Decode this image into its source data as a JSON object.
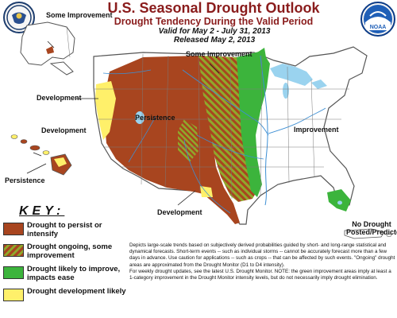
{
  "header": {
    "title": "U.S. Seasonal Drought Outlook",
    "subtitle": "Drought Tendency During the Valid Period",
    "valid": "Valid for May 2 - July 31, 2013",
    "released": "Released May 2, 2013"
  },
  "logos": {
    "left": {
      "name": "Department of Commerce seal"
    },
    "right": {
      "name": "NOAA logo",
      "text": "NOAA"
    }
  },
  "map": {
    "labels": {
      "some_improvement_ak": "Some Improvement",
      "development_ak": "Development",
      "development_hi": "Development",
      "persistence_hi": "Persistence",
      "some_improvement_plains": "Some Improvement",
      "persistence_west": "Persistence",
      "improvement_east": "Improvement",
      "development_tx": "Development",
      "no_drought_pr": "No Drought Posted/Predicted"
    },
    "colors": {
      "persist": "#a8451f",
      "improve": "#3cb43c",
      "develop": "#fff06a",
      "stripe": "#8fa92b",
      "land": "#ffffff",
      "water": "#9ad3ef",
      "border": "#555555"
    }
  },
  "key": {
    "title": "KEY:",
    "items": [
      {
        "label": "Drought to persist or intensify",
        "type": "persist"
      },
      {
        "label": "Drought ongoing, some improvement",
        "type": "some-improvement"
      },
      {
        "label": "Drought likely to improve, impacts ease",
        "type": "improve"
      },
      {
        "label": "Drought development likely",
        "type": "develop"
      }
    ]
  },
  "disclaimer": {
    "p1": "Depicts large-scale trends based on subjectively derived probabilities guided by short- and long-range statistical and dynamical forecasts. Short-term events -- such as individual storms -- cannot be accurately forecast more than a few days in advance. Use caution for applications -- such as crops -- that can be affected by such events. \"Ongoing\" drought areas are approximated from the Drought Monitor (D1 to D4 intensity).",
    "p2": "For weekly drought updates, see the latest U.S. Drought Monitor. NOTE: the green improvement areas imply at least a 1-category improvement in the Drought Monitor intensity levels, but do not necessarily imply drought elimination."
  }
}
